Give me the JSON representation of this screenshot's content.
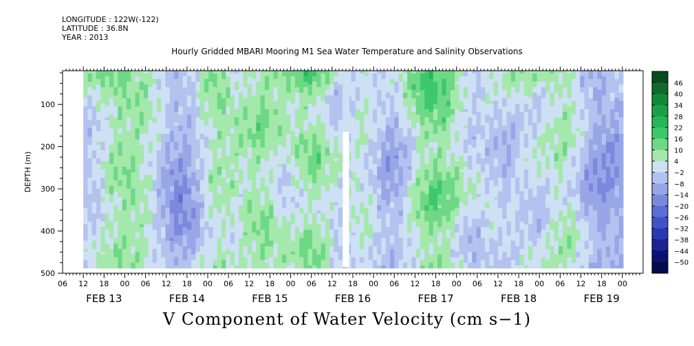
{
  "header": {
    "longitude": "LONGITUDE : 122W(-122)",
    "latitude": "LATITUDE : 36.8N",
    "year": "YEAR : 2013",
    "title": "Hourly Gridded MBARI Mooring M1 Sea Water Temperature and Salinity Observations"
  },
  "chart_data": {
    "type": "heatmap",
    "title": "Hourly Gridded MBARI Mooring M1 Sea Water Temperature and Salinity Observations",
    "xlabel": "",
    "ylabel": "DEPTH (m)",
    "variable_label": "V Component of Water Velocity (cm s−1)",
    "y_axis": {
      "range": [
        500,
        20
      ],
      "inverted": true,
      "ticks": [
        100,
        200,
        300,
        400,
        500
      ]
    },
    "x_axis": {
      "hour_ticks": [
        "06",
        "12",
        "18",
        "00",
        "06",
        "12",
        "18",
        "00",
        "06",
        "12",
        "18",
        "00",
        "06",
        "12",
        "18",
        "00",
        "06",
        "12",
        "18",
        "00",
        "06",
        "12",
        "18",
        "00",
        "06",
        "12",
        "18",
        "00"
      ],
      "date_labels": [
        "FEB 13",
        "FEB 14",
        "FEB 15",
        "FEB 16",
        "FEB 17",
        "FEB 18",
        "FEB 19"
      ]
    },
    "data_extent": {
      "start": "FEB 13 12:00",
      "end": "FEB 20 00:00",
      "depth_top": 20,
      "depth_bottom": 485
    },
    "colorbar": {
      "levels": [
        46,
        40,
        34,
        28,
        22,
        16,
        10,
        4,
        -2,
        -8,
        -14,
        -20,
        -26,
        -32,
        -38,
        -44,
        -50
      ],
      "colors": [
        "#0a4a1e",
        "#0f6b2c",
        "#14883a",
        "#1aa048",
        "#22b85a",
        "#3ec86c",
        "#6ed985",
        "#a4e8ac",
        "#cde0f4",
        "#b4c2ef",
        "#97a6e6",
        "#7a89dd",
        "#5c6dd3",
        "#3f52c7",
        "#2a39b3",
        "#1a2496",
        "#0c1272",
        "#060a4e"
      ]
    },
    "grid": false,
    "legend_placement": "right"
  }
}
